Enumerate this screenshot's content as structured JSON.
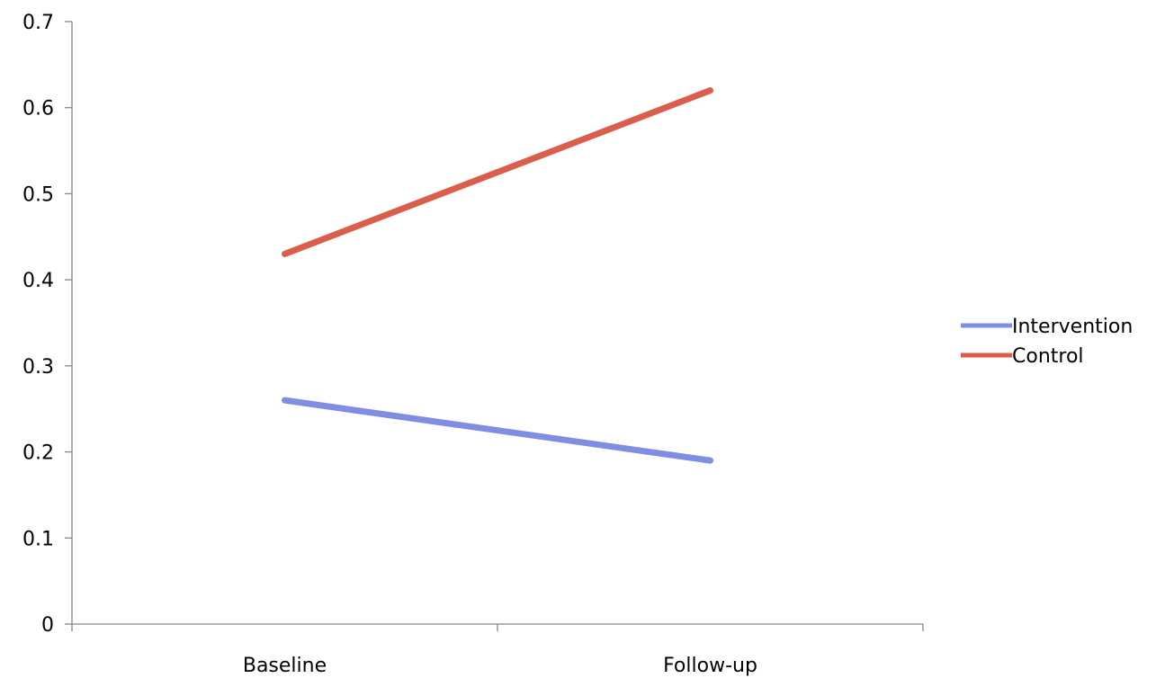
{
  "chart_data": {
    "type": "line",
    "title": "",
    "xlabel": "",
    "ylabel": "",
    "categories": [
      "Baseline",
      "Follow-up"
    ],
    "ylim": [
      0,
      0.7
    ],
    "yticks": [
      "0",
      "0.1",
      "0.2",
      "0.3",
      "0.4",
      "0.5",
      "0.6",
      "0.7"
    ],
    "grid": false,
    "legend_position": "right",
    "series": [
      {
        "name": "Intervention",
        "values": [
          0.26,
          0.19
        ],
        "color": "#7F8DE3"
      },
      {
        "name": "Control",
        "values": [
          0.43,
          0.62
        ],
        "color": "#DB5E4C"
      }
    ],
    "axis_color": "#868686"
  }
}
